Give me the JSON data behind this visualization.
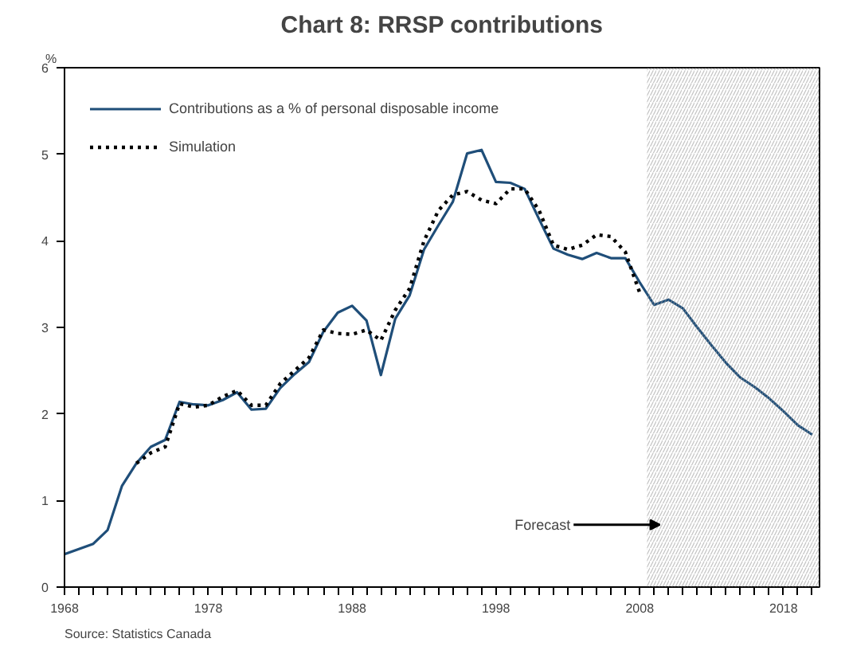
{
  "chart_data": {
    "type": "line",
    "title": "Chart 8: RRSP contributions",
    "ylabel": "%",
    "x": [
      1968,
      1969,
      1970,
      1971,
      1972,
      1973,
      1974,
      1975,
      1976,
      1977,
      1978,
      1979,
      1980,
      1981,
      1982,
      1983,
      1984,
      1985,
      1986,
      1987,
      1988,
      1989,
      1990,
      1991,
      1992,
      1993,
      1994,
      1995,
      1996,
      1997,
      1998,
      1999,
      2000,
      2001,
      2002,
      2003,
      2004,
      2005,
      2006,
      2007,
      2008,
      2009,
      2010,
      2011,
      2012,
      2013,
      2014,
      2015,
      2016,
      2017,
      2018,
      2019,
      2020
    ],
    "series": [
      {
        "name": "Contributions as a % of personal disposable income",
        "color": "#1f4e79",
        "line_style": "solid",
        "values": [
          0.38,
          0.44,
          0.5,
          0.66,
          1.17,
          1.43,
          1.62,
          1.7,
          2.14,
          2.11,
          2.1,
          2.16,
          2.25,
          2.05,
          2.06,
          2.3,
          2.46,
          2.6,
          2.95,
          3.17,
          3.25,
          3.08,
          2.45,
          3.1,
          3.37,
          3.9,
          4.18,
          4.45,
          5.01,
          5.05,
          4.68,
          4.67,
          4.6,
          4.25,
          3.91,
          3.84,
          3.79,
          3.86,
          3.8,
          3.8,
          3.52,
          3.26,
          3.32,
          3.22,
          3.0,
          2.79,
          2.59,
          2.42,
          2.31,
          2.18,
          2.03,
          1.87,
          1.76
        ]
      },
      {
        "name": "Simulation",
        "color": "#000000",
        "line_style": "dotted",
        "x": [
          1973,
          1974,
          1975,
          1976,
          1977,
          1978,
          1979,
          1980,
          1981,
          1982,
          1983,
          1984,
          1985,
          1986,
          1987,
          1988,
          1989,
          1990,
          1991,
          1992,
          1993,
          1994,
          1995,
          1996,
          1997,
          1998,
          1999,
          2000,
          2001,
          2002,
          2003,
          2004,
          2005,
          2006,
          2007,
          2008
        ],
        "values": [
          1.43,
          1.55,
          1.62,
          2.12,
          2.08,
          2.1,
          2.2,
          2.27,
          2.1,
          2.1,
          2.35,
          2.5,
          2.65,
          2.97,
          2.93,
          2.92,
          2.97,
          2.85,
          3.2,
          3.45,
          4.0,
          4.35,
          4.53,
          4.57,
          4.47,
          4.43,
          4.6,
          4.6,
          4.35,
          3.95,
          3.9,
          3.95,
          4.07,
          4.05,
          3.87,
          3.4
        ]
      }
    ],
    "xlim": [
      1968,
      2020.5
    ],
    "ylim": [
      0,
      6
    ],
    "xticks": [
      1968,
      {
        "value": 1969,
        "label": null
      },
      {
        "value": 1970,
        "label": null
      },
      {
        "value": 1971,
        "label": null
      },
      {
        "value": 1972,
        "label": null
      },
      {
        "value": 1973,
        "label": null
      },
      {
        "value": 1974,
        "label": null
      },
      {
        "value": 1975,
        "label": null
      },
      {
        "value": 1976,
        "label": null
      },
      {
        "value": 1977,
        "label": null
      },
      1978,
      {
        "value": 1979,
        "label": null
      },
      {
        "value": 1980,
        "label": null
      },
      {
        "value": 1981,
        "label": null
      },
      {
        "value": 1982,
        "label": null
      },
      {
        "value": 1983,
        "label": null
      },
      {
        "value": 1984,
        "label": null
      },
      {
        "value": 1985,
        "label": null
      },
      {
        "value": 1986,
        "label": null
      },
      {
        "value": 1987,
        "label": null
      },
      1988,
      {
        "value": 1989,
        "label": null
      },
      {
        "value": 1990,
        "label": null
      },
      {
        "value": 1991,
        "label": null
      },
      {
        "value": 1992,
        "label": null
      },
      {
        "value": 1993,
        "label": null
      },
      {
        "value": 1994,
        "label": null
      },
      {
        "value": 1995,
        "label": null
      },
      {
        "value": 1996,
        "label": null
      },
      {
        "value": 1997,
        "label": null
      },
      1998,
      {
        "value": 1999,
        "label": null
      },
      {
        "value": 2000,
        "label": null
      },
      {
        "value": 2001,
        "label": null
      },
      {
        "value": 2002,
        "label": null
      },
      {
        "value": 2003,
        "label": null
      },
      {
        "value": 2004,
        "label": null
      },
      {
        "value": 2005,
        "label": null
      },
      {
        "value": 2006,
        "label": null
      },
      {
        "value": 2007,
        "label": null
      },
      2008,
      {
        "value": 2009,
        "label": null
      },
      {
        "value": 2010,
        "label": null
      },
      {
        "value": 2011,
        "label": null
      },
      {
        "value": 2012,
        "label": null
      },
      {
        "value": 2013,
        "label": null
      },
      {
        "value": 2014,
        "label": null
      },
      {
        "value": 2015,
        "label": null
      },
      {
        "value": 2016,
        "label": null
      },
      {
        "value": 2017,
        "label": null
      },
      2018,
      {
        "value": 2019,
        "label": null
      },
      {
        "value": 2020,
        "label": null
      }
    ],
    "yticks": [
      0,
      1,
      2,
      3,
      4,
      5,
      6
    ],
    "bands": [
      {
        "axis": "x",
        "from": 2008.5,
        "to": 2020.5,
        "label": "Forecast",
        "color": "#9a9a9a"
      }
    ],
    "annotations": [
      "Source: Statistics Canada"
    ],
    "grid": false,
    "legend": "top left",
    "marker": "none"
  }
}
